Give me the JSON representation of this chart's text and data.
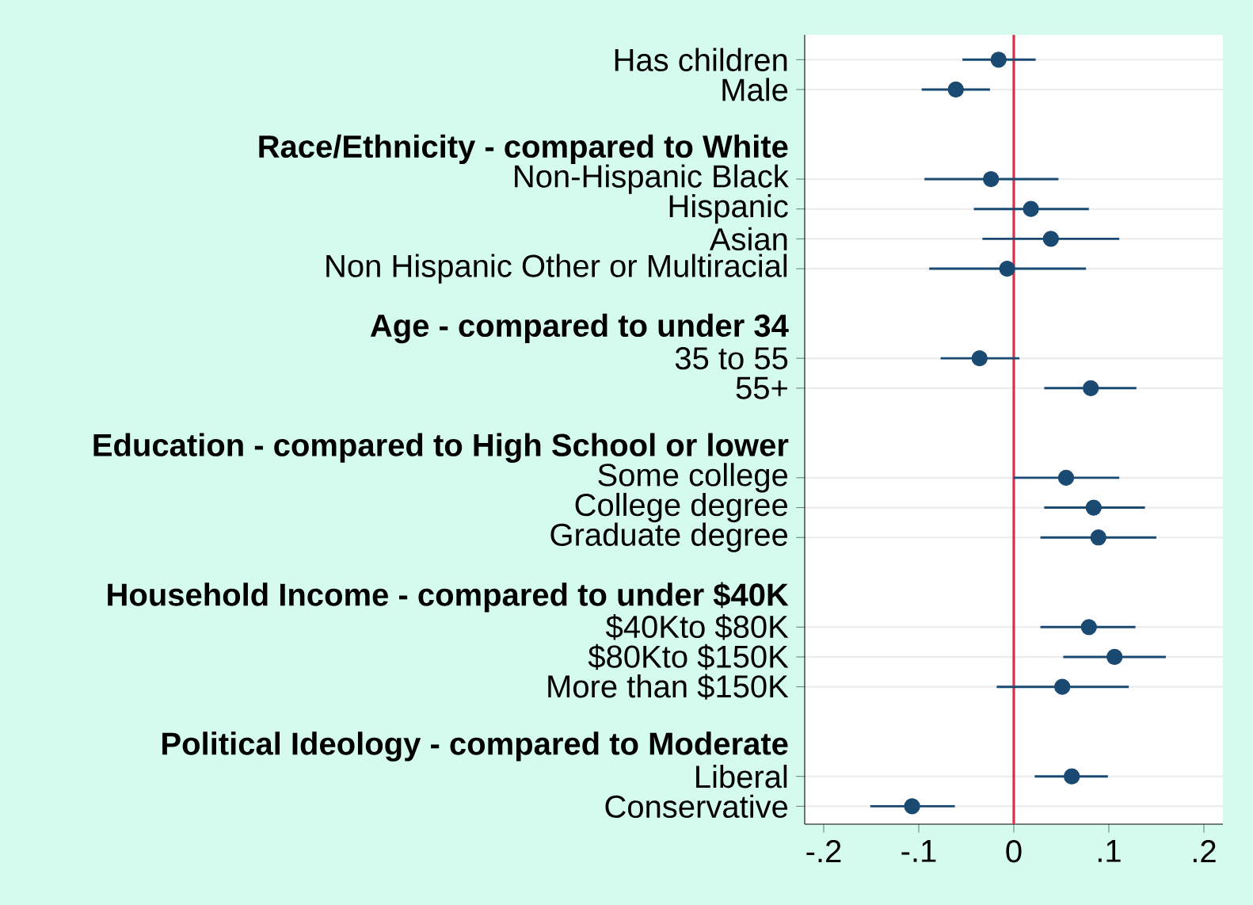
{
  "chart_data": {
    "type": "scatter",
    "orientation": "horizontal",
    "categories": [
      "Has children",
      "Male",
      null,
      "Race/Ethnicity - compared to White",
      "Non-Hispanic Black",
      "Hispanic",
      "Asian",
      "Non Hispanic Other or Multiracial",
      null,
      "Age - compared to under 34",
      "35 to 55",
      "55+",
      null,
      "Education - compared to High School or lower",
      "Some college",
      "College degree",
      "Graduate degree",
      null,
      "Household Income - compared to under $40K",
      "$40Kto $80K",
      "$80Kto $150K",
      "More than $150K",
      null,
      "Political Ideology - compared to Moderate",
      "Liberal",
      "Conservative"
    ],
    "values": [
      -0.016,
      -0.061,
      null,
      null,
      -0.024,
      0.018,
      0.039,
      -0.007,
      null,
      null,
      -0.036,
      0.081,
      null,
      null,
      0.055,
      0.084,
      0.089,
      null,
      null,
      0.079,
      0.106,
      0.051,
      null,
      null,
      0.061,
      -0.107
    ],
    "errors": [
      [
        -0.054,
        0.023
      ],
      [
        -0.097,
        -0.025
      ],
      null,
      null,
      [
        -0.094,
        0.047
      ],
      [
        -0.042,
        0.079
      ],
      [
        -0.033,
        0.111
      ],
      [
        -0.089,
        0.076
      ],
      null,
      null,
      [
        -0.077,
        0.006
      ],
      [
        0.032,
        0.129
      ],
      null,
      null,
      [
        0.0,
        0.111
      ],
      [
        0.032,
        0.138
      ],
      [
        0.028,
        0.15
      ],
      null,
      null,
      [
        0.028,
        0.128
      ],
      [
        0.052,
        0.16
      ],
      [
        -0.018,
        0.121
      ],
      null,
      null,
      [
        0.022,
        0.099
      ],
      [
        -0.151,
        -0.062
      ]
    ],
    "color": "#1a4a72",
    "marker": "circle",
    "grid": "y",
    "xlim": [
      -0.22,
      0.22
    ],
    "xticks": [
      {
        "value": -0.2,
        "label": "-.2"
      },
      {
        "value": -0.1,
        "label": "-.1"
      },
      0,
      {
        "value": 0.1,
        "label": ".1"
      },
      {
        "value": 0.2,
        "label": ".2"
      }
    ],
    "ref_lines": [
      {
        "axis": "x",
        "value": 0,
        "color": "#d9304a"
      }
    ]
  }
}
